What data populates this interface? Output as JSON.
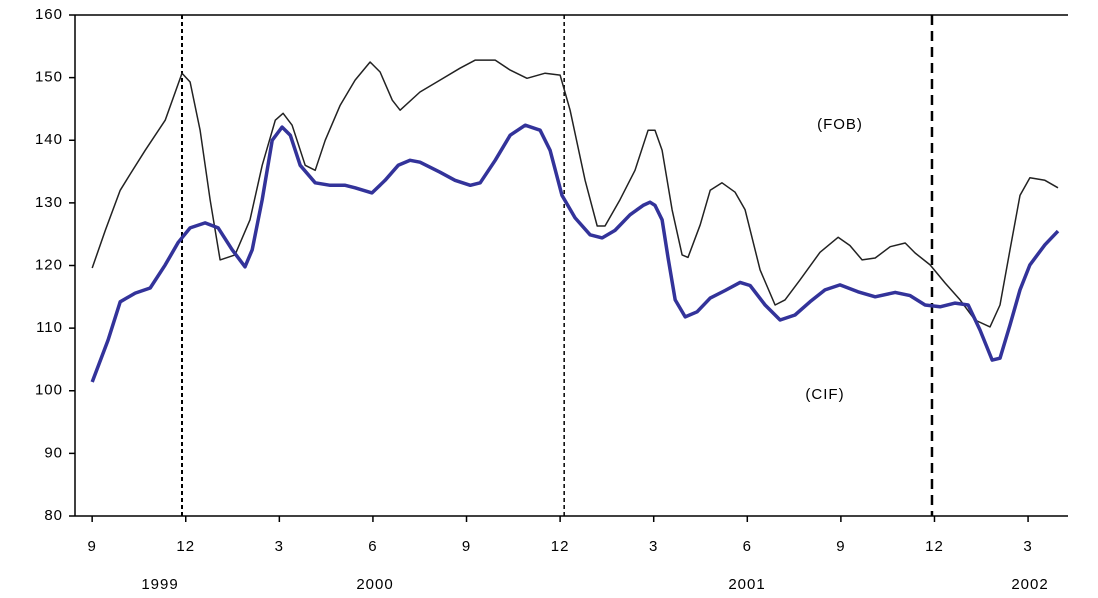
{
  "chart_data": {
    "type": "line",
    "xlim": [
      -0.55,
      31.28
    ],
    "xticks": [
      {
        "value": 0,
        "label": "9"
      },
      {
        "value": 3,
        "label": "12"
      },
      {
        "value": 6,
        "label": "3"
      },
      {
        "value": 9,
        "label": "6"
      },
      {
        "value": 12,
        "label": "9"
      },
      {
        "value": 15,
        "label": "12"
      },
      {
        "value": 18,
        "label": "3"
      },
      {
        "value": 21,
        "label": "6"
      },
      {
        "value": 24,
        "label": "9"
      },
      {
        "value": 27,
        "label": "12"
      },
      {
        "value": 30,
        "label": "3"
      }
    ],
    "years": [
      "1999",
      "2000",
      "2001",
      "2002"
    ],
    "ylim": [
      80,
      160
    ],
    "yticks": [
      80,
      90,
      100,
      110,
      120,
      130,
      140,
      150,
      160
    ],
    "reference_lines": [
      2.88,
      15.13,
      26.92
    ],
    "annotations": [
      "(FOB)",
      "(CIF)"
    ],
    "series": [
      {
        "name": "(FOB)",
        "color": "#222222",
        "x": [
          0,
          0.42,
          0.9,
          1.22,
          1.7,
          2.34,
          2.88,
          3.14,
          3.46,
          3.78,
          4.1,
          4.58,
          5.06,
          5.45,
          5.87,
          6.12,
          6.41,
          6.83,
          7.15,
          7.47,
          7.95,
          8.43,
          8.91,
          9.23,
          9.62,
          9.87,
          10.51,
          11.15,
          11.79,
          12.28,
          12.92,
          13.4,
          13.94,
          14.52,
          15,
          15.32,
          15.8,
          16.19,
          16.44,
          16.92,
          17.4,
          17.82,
          18.04,
          18.27,
          18.59,
          18.91,
          19.1,
          19.49,
          19.81,
          20.19,
          20.61,
          20.93,
          21.41,
          21.89,
          22.21,
          22.69,
          23.33,
          23.91,
          24.29,
          24.68,
          25.1,
          25.58,
          26.06,
          26.38,
          26.86,
          27.34,
          27.82,
          28.3,
          28.78,
          29.1,
          29.42,
          29.74,
          30.06,
          30.54,
          30.96
        ],
        "values": [
          119.6,
          125.6,
          132,
          134.6,
          138.4,
          143.2,
          150.7,
          149.3,
          141.6,
          130.5,
          120.9,
          121.7,
          127.3,
          136,
          143.2,
          144.3,
          142.4,
          136,
          135.2,
          140,
          145.6,
          149.6,
          152.5,
          150.9,
          146.4,
          144.8,
          147.7,
          149.6,
          151.5,
          152.8,
          152.8,
          151.2,
          149.9,
          150.7,
          150.4,
          144.8,
          133.6,
          126.3,
          126.3,
          130.5,
          135.2,
          141.6,
          141.6,
          138.4,
          128.9,
          121.7,
          121.3,
          126.5,
          132,
          133.2,
          131.7,
          128.9,
          119.3,
          113.7,
          114.5,
          117.7,
          122.1,
          124.5,
          123.2,
          120.9,
          121.2,
          123,
          123.6,
          122,
          120.1,
          117.2,
          114.5,
          111.3,
          110.2,
          113.7,
          122.5,
          131.2,
          134,
          133.6,
          132.4
        ]
      },
      {
        "name": "(CIF)",
        "color": "#33339a",
        "x": [
          0,
          0.51,
          0.9,
          1.38,
          1.86,
          2.34,
          2.76,
          3.14,
          3.62,
          4.04,
          4.49,
          4.9,
          5.13,
          5.45,
          5.77,
          6.09,
          6.35,
          6.67,
          7.15,
          7.63,
          8.11,
          8.43,
          8.97,
          9.39,
          9.81,
          10.19,
          10.51,
          11.15,
          11.63,
          12.12,
          12.44,
          12.92,
          13.4,
          13.88,
          14.36,
          14.68,
          15.06,
          15.48,
          15.96,
          16.35,
          16.76,
          17.24,
          17.66,
          17.88,
          18.04,
          18.27,
          18.46,
          18.69,
          19.01,
          19.39,
          19.81,
          20.29,
          20.77,
          21.09,
          21.57,
          22.05,
          22.53,
          23.01,
          23.49,
          23.97,
          24.55,
          25.1,
          25.74,
          26.22,
          26.7,
          27.18,
          27.66,
          28.08,
          28.46,
          28.85,
          29.1,
          29.42,
          29.74,
          30.06,
          30.54,
          30.96
        ],
        "values": [
          101.4,
          108.1,
          114.2,
          115.6,
          116.4,
          120.1,
          123.7,
          126,
          126.8,
          126,
          122.5,
          119.8,
          122.5,
          130.5,
          140,
          142.1,
          140.8,
          136,
          133.2,
          132.8,
          132.8,
          132.4,
          131.6,
          133.6,
          136,
          136.8,
          136.5,
          134.9,
          133.6,
          132.8,
          133.2,
          136.8,
          140.8,
          142.4,
          141.6,
          138.4,
          131.2,
          127.6,
          124.9,
          124.4,
          125.6,
          128.1,
          129.6,
          130.1,
          129.6,
          127.3,
          121.2,
          114.5,
          111.8,
          112.6,
          114.8,
          116,
          117.3,
          116.8,
          113.7,
          111.3,
          112.1,
          114.2,
          116.1,
          116.9,
          115.8,
          115,
          115.7,
          115.2,
          113.7,
          113.4,
          114,
          113.7,
          109.7,
          104.9,
          105.2,
          110.5,
          116.1,
          120.1,
          123.3,
          125.5
        ]
      }
    ]
  }
}
